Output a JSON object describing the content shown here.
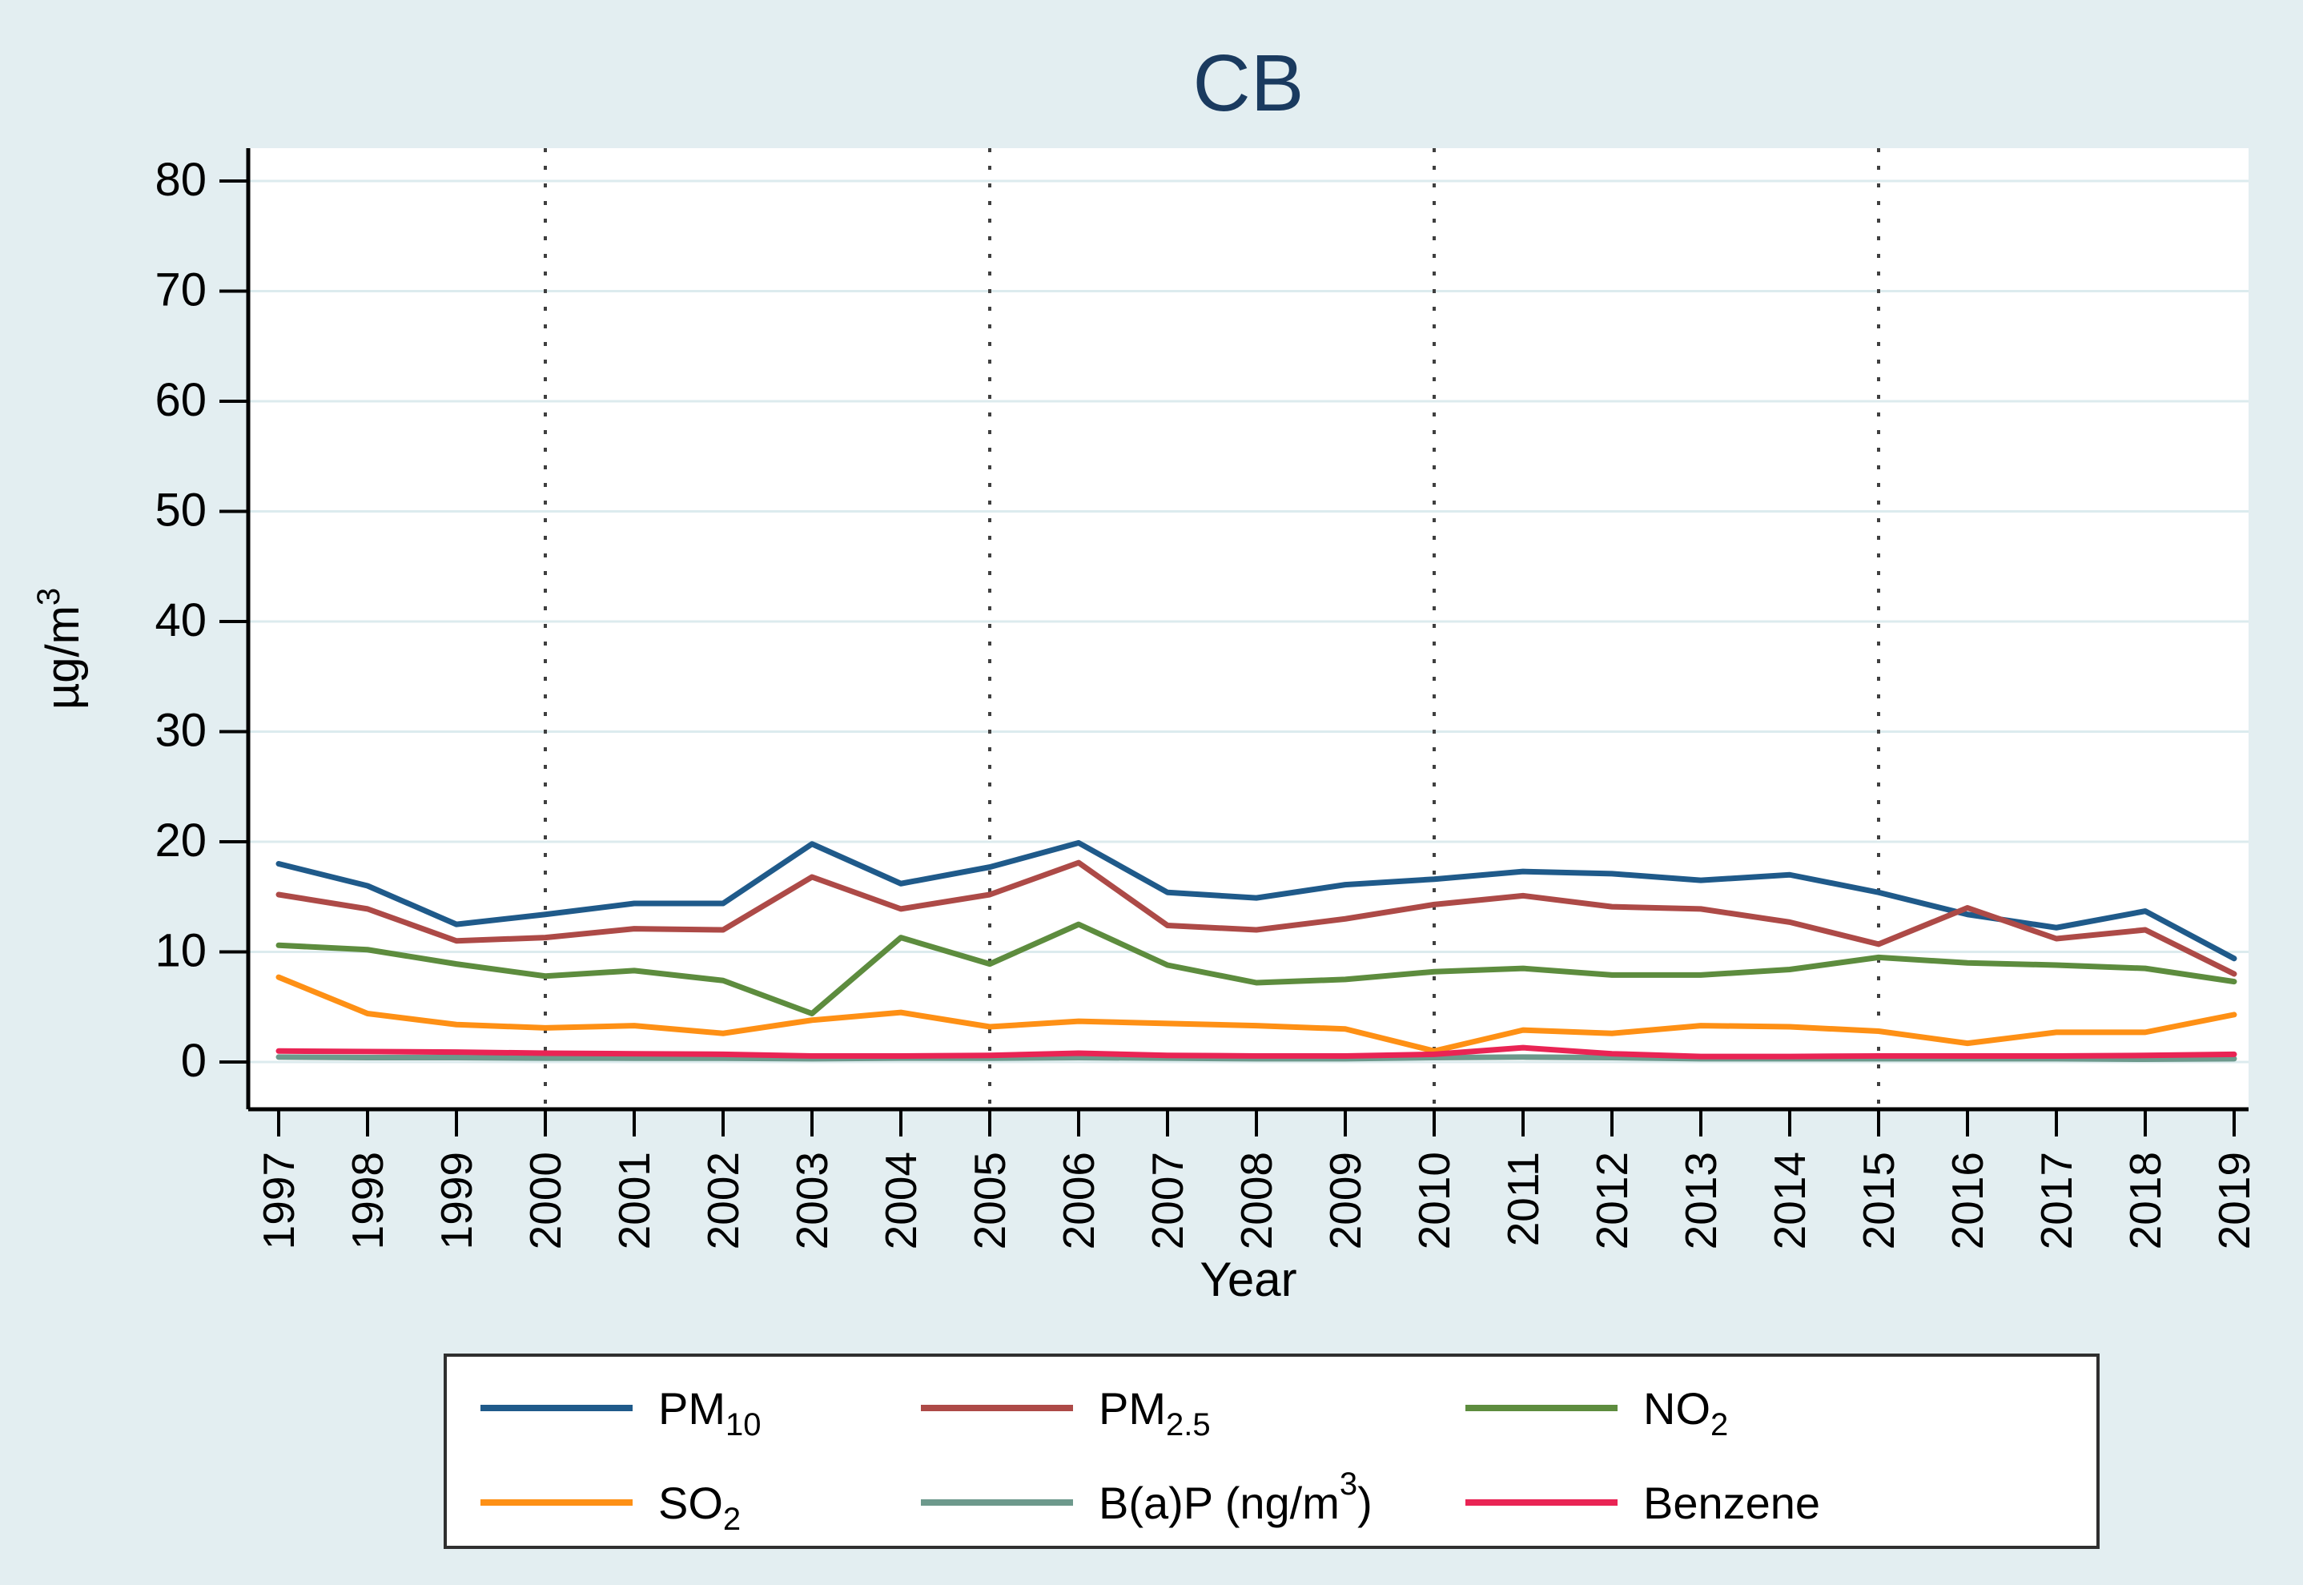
{
  "title": "CB",
  "style": {
    "background_color": "#e3eef1",
    "plot_background_color": "#ffffff",
    "gridline_color": "#dcebee",
    "dotted_gridline_color": "#3f3f3f",
    "axis_color": "#000000",
    "title_color": "#1a3a5f",
    "tick_label_color": "#000000",
    "legend_border_color": "#2f2f2f",
    "legend_background_color": "#ffffff"
  },
  "axes": {
    "y_label_main": "µg/m",
    "y_label_sup": "3",
    "x_label": "Year",
    "y_ticks": [
      "0",
      "10",
      "20",
      "30",
      "40",
      "50",
      "60",
      "70",
      "80"
    ],
    "x_gridline_years": [
      2000,
      2005,
      2010,
      2015
    ]
  },
  "chart_data": {
    "type": "line",
    "title": "CB",
    "xlabel": "Year",
    "ylabel": "µg/m³",
    "ylim": [
      0,
      80
    ],
    "y_tick_step": 10,
    "grid": {
      "horizontal": true,
      "vertical_dotted_at": [
        2000,
        2005,
        2010,
        2015
      ]
    },
    "legend_position": "bottom",
    "x": [
      1997,
      1998,
      1999,
      2000,
      2001,
      2002,
      2003,
      2004,
      2005,
      2006,
      2007,
      2008,
      2009,
      2010,
      2011,
      2012,
      2013,
      2014,
      2015,
      2016,
      2017,
      2018,
      2019
    ],
    "series": [
      {
        "name": "PM10",
        "label_main": "PM",
        "label_sub": "10",
        "color": "#1f5a8a",
        "values": [
          18.0,
          16.0,
          12.5,
          13.4,
          14.4,
          14.4,
          19.8,
          16.2,
          17.7,
          19.9,
          15.4,
          14.9,
          16.1,
          16.6,
          17.3,
          17.1,
          16.5,
          17.0,
          15.4,
          13.4,
          12.2,
          13.7,
          9.4
        ]
      },
      {
        "name": "PM2.5",
        "label_main": "PM",
        "label_sub": "2.5",
        "color": "#ad4a47",
        "values": [
          15.2,
          13.9,
          11.0,
          11.3,
          12.1,
          12.0,
          16.8,
          13.9,
          15.2,
          18.1,
          12.4,
          12.0,
          13.0,
          14.3,
          15.1,
          14.1,
          13.9,
          12.7,
          10.7,
          14.0,
          11.2,
          12.0,
          8.0
        ]
      },
      {
        "name": "NO2",
        "label_main": "NO",
        "label_sub": "2",
        "color": "#5d8c3e",
        "values": [
          10.6,
          10.2,
          8.9,
          7.8,
          8.3,
          7.4,
          4.4,
          11.3,
          8.9,
          12.5,
          8.8,
          7.2,
          7.5,
          8.2,
          8.5,
          7.9,
          7.9,
          8.4,
          9.5,
          9.0,
          8.8,
          8.5,
          7.3
        ]
      },
      {
        "name": "SO2",
        "label_main": "SO",
        "label_sub": "2",
        "color": "#fe9015",
        "values": [
          7.7,
          4.4,
          3.4,
          3.1,
          3.3,
          2.6,
          3.8,
          4.5,
          3.2,
          3.7,
          3.5,
          3.3,
          3.0,
          1.0,
          2.9,
          2.6,
          3.3,
          3.2,
          2.8,
          1.7,
          2.7,
          2.7,
          4.3
        ]
      },
      {
        "name": "B(a)P (ng/m3)",
        "label_main": "B(a)P (ng/m",
        "label_sup": "3",
        "label_tail": ")",
        "color": "#6d998c",
        "values": [
          0.45,
          0.4,
          0.4,
          0.35,
          0.35,
          0.35,
          0.3,
          0.35,
          0.35,
          0.4,
          0.35,
          0.3,
          0.3,
          0.4,
          0.45,
          0.4,
          0.3,
          0.3,
          0.3,
          0.3,
          0.3,
          0.25,
          0.3
        ]
      },
      {
        "name": "Benzene",
        "label_main": "Benzene",
        "color": "#e92454",
        "values": [
          1.0,
          0.95,
          0.9,
          0.8,
          0.75,
          0.7,
          0.55,
          0.55,
          0.6,
          0.8,
          0.6,
          0.55,
          0.55,
          0.7,
          1.3,
          0.75,
          0.5,
          0.5,
          0.55,
          0.55,
          0.55,
          0.6,
          0.7
        ]
      }
    ]
  }
}
